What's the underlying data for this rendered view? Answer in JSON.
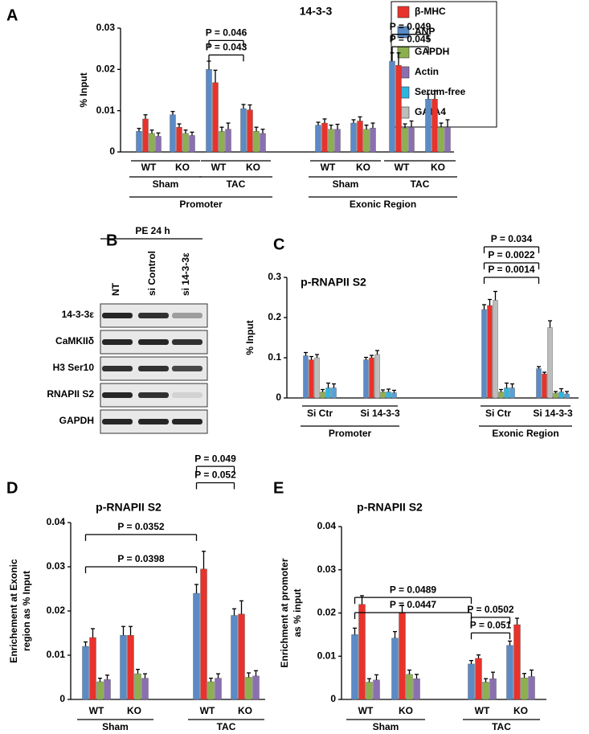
{
  "panels": [
    "A",
    "B",
    "C",
    "D",
    "E"
  ],
  "legend": [
    {
      "name": "β-MHC",
      "color": "#e8322b"
    },
    {
      "name": "ANP",
      "color": "#5b8ac6"
    },
    {
      "name": "GAPDH",
      "color": "#8db04f"
    },
    {
      "name": "Actin",
      "color": "#8a70b0"
    },
    {
      "name": "Serum-free",
      "color": "#2fb5e0"
    },
    {
      "name": "GATA4",
      "color": "#bdbdbd"
    }
  ],
  "blot": {
    "header": "PE 24 h",
    "lanes": [
      "NT",
      "si Control",
      "si 14-3-3ε"
    ],
    "rows": [
      "14-3-3ε",
      "CaMKIIδ",
      "H3 Ser10",
      "RNAPII S2",
      "GAPDH"
    ]
  },
  "chart_data": [
    {
      "type": "bar",
      "title": "14-3-3",
      "ylabel": [
        "% Input"
      ],
      "ylim": [
        0,
        0.03
      ],
      "yticks": [
        0,
        0.01,
        0.02,
        0.03
      ],
      "groups": [
        {
          "name": "Promoter",
          "groups": [
            {
              "name": "Sham",
              "categories": [
                "WT",
                "KO"
              ]
            },
            {
              "name": "TAC",
              "categories": [
                "WT",
                "KO"
              ]
            }
          ]
        },
        {
          "name": "Exonic Region",
          "groups": [
            {
              "name": "Sham",
              "categories": [
                "WT",
                "KO"
              ]
            },
            {
              "name": "TAC",
              "categories": [
                "WT",
                "KO"
              ]
            }
          ]
        }
      ],
      "series": [
        {
          "name": "ANP",
          "color": "#5b8ac6",
          "values": [
            0.005,
            0.009,
            0.02,
            0.0105,
            0.0065,
            0.007,
            0.022,
            0.0128
          ],
          "errors": [
            0.0007,
            0.0008,
            0.002,
            0.001,
            0.0007,
            0.0008,
            0.002,
            0.0012
          ]
        },
        {
          "name": "β-MHC",
          "color": "#e8322b",
          "values": [
            0.008,
            0.006,
            0.0168,
            0.0102,
            0.007,
            0.0075,
            0.021,
            0.0128
          ],
          "errors": [
            0.001,
            0.0008,
            0.003,
            0.0012,
            0.001,
            0.001,
            0.003,
            0.002
          ]
        },
        {
          "name": "GAPDH",
          "color": "#8db04f",
          "values": [
            0.0045,
            0.0045,
            0.005,
            0.005,
            0.0055,
            0.0055,
            0.0058,
            0.006
          ],
          "errors": [
            0.0008,
            0.0008,
            0.001,
            0.001,
            0.001,
            0.001,
            0.001,
            0.001
          ]
        },
        {
          "name": "Actin",
          "color": "#8a70b0",
          "values": [
            0.0038,
            0.004,
            0.0055,
            0.0045,
            0.0055,
            0.0058,
            0.006,
            0.006
          ],
          "errors": [
            0.0008,
            0.0008,
            0.0015,
            0.001,
            0.0012,
            0.0012,
            0.0015,
            0.0018
          ]
        }
      ],
      "annotations": [
        {
          "label": "P = 0.043",
          "from": 2,
          "to": 3,
          "y": 0.0235
        },
        {
          "label": "P = 0.046",
          "from": 2,
          "to": 3,
          "y": 0.027
        },
        {
          "label": "P = 0.045",
          "from": 6,
          "to": 7,
          "y": 0.0255
        },
        {
          "label": "P = 0.049",
          "from": 6,
          "to": 7,
          "y": 0.0285
        }
      ]
    },
    {
      "type": "bar",
      "title": "p-RNAPII S2",
      "ylabel": [
        "% Input"
      ],
      "ylim": [
        0,
        0.3
      ],
      "yticks": [
        0,
        0.1,
        0.2,
        0.3
      ],
      "groups": [
        {
          "name": "Promoter",
          "categories": [
            "Si Ctr",
            "Si 14-3-3"
          ]
        },
        {
          "name": "Exonic Region",
          "categories": [
            "Si Ctr",
            "Si 14-3-3"
          ]
        }
      ],
      "series": [
        {
          "name": "ANP",
          "color": "#5b8ac6",
          "values": [
            0.105,
            0.095,
            0.22,
            0.073
          ],
          "errors": [
            0.008,
            0.006,
            0.012,
            0.005
          ]
        },
        {
          "name": "β-MHC",
          "color": "#e8322b",
          "values": [
            0.095,
            0.1,
            0.23,
            0.06
          ],
          "errors": [
            0.008,
            0.006,
            0.015,
            0.004
          ]
        },
        {
          "name": "GATA4",
          "color": "#bdbdbd",
          "values": [
            0.1,
            0.108,
            0.243,
            0.175
          ],
          "errors": [
            0.008,
            0.01,
            0.022,
            0.017
          ]
        },
        {
          "name": "GAPDH",
          "color": "#8db04f",
          "values": [
            0.015,
            0.015,
            0.015,
            0.012
          ],
          "errors": [
            0.006,
            0.005,
            0.006,
            0.004
          ]
        },
        {
          "name": "Serum-free",
          "color": "#2fb5e0",
          "values": [
            0.025,
            0.015,
            0.025,
            0.015
          ],
          "errors": [
            0.012,
            0.007,
            0.012,
            0.008
          ]
        },
        {
          "name": "Actin",
          "color": "#5aa0d8",
          "values": [
            0.025,
            0.013,
            0.025,
            0.01
          ],
          "errors": [
            0.01,
            0.006,
            0.01,
            0.006
          ]
        }
      ],
      "annotations": [
        {
          "label": "P = 0.0014",
          "from": 2,
          "to": 3,
          "y": 0.3
        },
        {
          "label": "P = 0.0022",
          "from": 2,
          "to": 3,
          "y": 0.336
        },
        {
          "label": "P = 0.034",
          "from": 2,
          "to": 3,
          "y": 0.376
        }
      ]
    },
    {
      "type": "bar",
      "title": "p-RNAPII S2",
      "ylabel": [
        "Enrichement at Exonic",
        "region as % Input"
      ],
      "ylim": [
        0,
        0.04
      ],
      "yticks": [
        0,
        0.01,
        0.02,
        0.03,
        0.04
      ],
      "groups": [
        {
          "name": "Sham",
          "categories": [
            "WT",
            "KO"
          ]
        },
        {
          "name": "TAC",
          "categories": [
            "WT",
            "KO"
          ]
        }
      ],
      "series": [
        {
          "name": "ANP",
          "color": "#5b8ac6",
          "values": [
            0.012,
            0.0145,
            0.024,
            0.019
          ],
          "errors": [
            0.001,
            0.002,
            0.002,
            0.0015
          ]
        },
        {
          "name": "β-MHC",
          "color": "#e8322b",
          "values": [
            0.014,
            0.0145,
            0.0295,
            0.0193
          ],
          "errors": [
            0.002,
            0.002,
            0.004,
            0.003
          ]
        },
        {
          "name": "GAPDH",
          "color": "#8db04f",
          "values": [
            0.004,
            0.0058,
            0.004,
            0.005
          ],
          "errors": [
            0.0008,
            0.001,
            0.0008,
            0.001
          ]
        },
        {
          "name": "Actin",
          "color": "#8a70b0",
          "values": [
            0.0045,
            0.0048,
            0.0048,
            0.0053
          ],
          "errors": [
            0.001,
            0.001,
            0.001,
            0.0012
          ]
        }
      ],
      "annotations": [
        {
          "label": "P = 0.0398",
          "from": 0,
          "to": 2,
          "y": 0.03
        },
        {
          "label": "P = 0.0352",
          "from": 0,
          "to": 2,
          "y": 0.0373
        },
        {
          "label": "P = 0.052",
          "from": 2,
          "to": 3,
          "y": 0.049
        },
        {
          "label": "P = 0.049",
          "from": 2,
          "to": 3,
          "y": 0.0527
        }
      ]
    },
    {
      "type": "bar",
      "title": "p-RNAPII S2",
      "ylabel": [
        "Enrichment at promoter",
        "as % input"
      ],
      "ylim": [
        0,
        0.04
      ],
      "yticks": [
        0,
        0.01,
        0.02,
        0.03,
        0.04
      ],
      "groups": [
        {
          "name": "Sham",
          "categories": [
            "WT",
            "KO"
          ]
        },
        {
          "name": "TAC",
          "categories": [
            "WT",
            "KO"
          ]
        }
      ],
      "series": [
        {
          "name": "ANP",
          "color": "#5b8ac6",
          "values": [
            0.015,
            0.0142,
            0.0082,
            0.0125
          ],
          "errors": [
            0.0015,
            0.0015,
            0.0008,
            0.001
          ]
        },
        {
          "name": "β-MHC",
          "color": "#e8322b",
          "values": [
            0.022,
            0.02,
            0.0095,
            0.0173
          ],
          "errors": [
            0.002,
            0.0018,
            0.0008,
            0.0015
          ]
        },
        {
          "name": "GAPDH",
          "color": "#8db04f",
          "values": [
            0.004,
            0.0058,
            0.004,
            0.005
          ],
          "errors": [
            0.0008,
            0.001,
            0.0008,
            0.001
          ]
        },
        {
          "name": "Actin",
          "color": "#8a70b0",
          "values": [
            0.0045,
            0.0048,
            0.0048,
            0.0053
          ],
          "errors": [
            0.0012,
            0.001,
            0.0015,
            0.0015
          ]
        }
      ],
      "annotations": [
        {
          "label": "P = 0.0447",
          "from": 0,
          "to": 2,
          "y": 0.0201
        },
        {
          "label": "P = 0.0489",
          "from": 0,
          "to": 2,
          "y": 0.0236
        },
        {
          "label": "P = 0.051",
          "from": 2,
          "to": 3,
          "y": 0.0154
        },
        {
          "label": "P = 0.0502",
          "from": 2,
          "to": 3,
          "y": 0.019
        }
      ]
    }
  ]
}
